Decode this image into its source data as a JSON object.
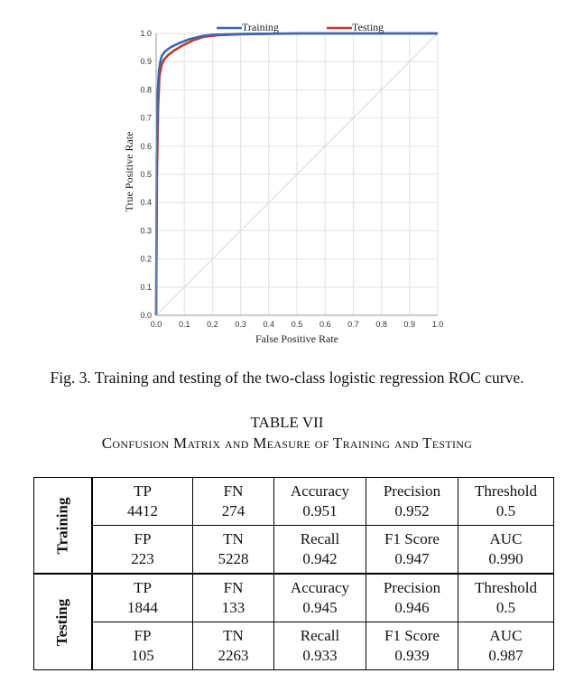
{
  "chart_data": {
    "type": "line",
    "title": "",
    "xlabel": "False Positive Rate",
    "ylabel": "True Positive Rate",
    "xlim": [
      0,
      1
    ],
    "ylim": [
      0,
      1
    ],
    "xticks": [
      "0.0",
      "0.1",
      "0.2",
      "0.3",
      "0.4",
      "0.5",
      "0.6",
      "0.7",
      "0.8",
      "0.9",
      "1.0"
    ],
    "yticks": [
      "0.0",
      "0.1",
      "0.2",
      "0.3",
      "0.4",
      "0.5",
      "0.6",
      "0.7",
      "0.8",
      "0.9",
      "1.0"
    ],
    "grid": true,
    "legend_position": "top",
    "diagonal_reference": true,
    "series": [
      {
        "name": "Training",
        "color": "#3a68b0",
        "x": [
          0,
          0.002,
          0.005,
          0.01,
          0.015,
          0.02,
          0.03,
          0.05,
          0.08,
          0.12,
          0.16,
          0.2,
          0.3,
          0.5,
          0.7,
          1.0
        ],
        "y": [
          0,
          0.55,
          0.78,
          0.87,
          0.9,
          0.92,
          0.935,
          0.95,
          0.965,
          0.98,
          0.99,
          0.995,
          0.998,
          1.0,
          1.0,
          1.0
        ]
      },
      {
        "name": "Testing",
        "color": "#c0392b",
        "x": [
          0,
          0.003,
          0.007,
          0.012,
          0.02,
          0.03,
          0.045,
          0.065,
          0.09,
          0.13,
          0.17,
          0.22,
          0.3,
          0.5,
          0.7,
          1.0
        ],
        "y": [
          0,
          0.5,
          0.74,
          0.85,
          0.89,
          0.91,
          0.925,
          0.94,
          0.955,
          0.975,
          0.988,
          0.994,
          0.997,
          1.0,
          1.0,
          1.0
        ]
      }
    ]
  },
  "figure": {
    "caption": "Fig. 3.   Training and testing of the two-class logistic regression ROC curve."
  },
  "table": {
    "title": "TABLE VII",
    "subtitle": "Confusion Matrix and Measure of Training and Testing",
    "groups": [
      {
        "label": "Training",
        "rows": [
          [
            [
              "TP",
              "4412"
            ],
            [
              "FN",
              "274"
            ],
            [
              "Accuracy",
              "0.951"
            ],
            [
              "Precision",
              "0.952"
            ],
            [
              "Threshold",
              "0.5"
            ]
          ],
          [
            [
              "FP",
              "223"
            ],
            [
              "TN",
              "5228"
            ],
            [
              "Recall",
              "0.942"
            ],
            [
              "F1 Score",
              "0.947"
            ],
            [
              "AUC",
              "0.990"
            ]
          ]
        ]
      },
      {
        "label": "Testing",
        "rows": [
          [
            [
              "TP",
              "1844"
            ],
            [
              "FN",
              "133"
            ],
            [
              "Accuracy",
              "0.945"
            ],
            [
              "Precision",
              "0.946"
            ],
            [
              "Threshold",
              "0.5"
            ]
          ],
          [
            [
              "FP",
              "105"
            ],
            [
              "TN",
              "2263"
            ],
            [
              "Recall",
              "0.933"
            ],
            [
              "F1 Score",
              "0.939"
            ],
            [
              "AUC",
              "0.987"
            ]
          ]
        ]
      }
    ]
  }
}
